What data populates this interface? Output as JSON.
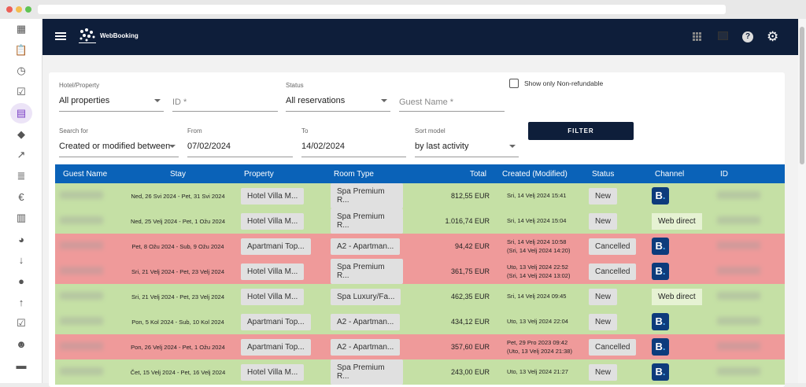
{
  "app": {
    "logo_text": "WebBooking"
  },
  "colors": {
    "header": "#0e1e3a",
    "table_header": "#0a62b8",
    "row_new": "#c5e0a5",
    "row_cancelled": "#ef9a9a",
    "booking_brand": "#0d3b7c"
  },
  "sidebar": {
    "items": [
      {
        "icon": "dashboard-icon"
      },
      {
        "icon": "clipboard-icon"
      },
      {
        "icon": "clock-icon"
      },
      {
        "icon": "calendar-check-icon"
      },
      {
        "icon": "calendar-icon",
        "active": true
      },
      {
        "icon": "tag-icon"
      },
      {
        "icon": "trending-up-icon"
      },
      {
        "icon": "document-icon"
      },
      {
        "icon": "euro-icon"
      },
      {
        "icon": "book-icon"
      },
      {
        "icon": "pie-chart-icon"
      },
      {
        "icon": "arrow-down-icon"
      },
      {
        "icon": "location-icon"
      },
      {
        "icon": "arrow-up-icon"
      },
      {
        "icon": "checkbox-icon"
      },
      {
        "icon": "people-icon"
      },
      {
        "icon": "bed-icon"
      }
    ]
  },
  "filters": {
    "hotel": {
      "label": "Hotel/Property",
      "value": "All properties"
    },
    "id": {
      "placeholder": "ID *"
    },
    "status": {
      "label": "Status",
      "value": "All reservations"
    },
    "guest": {
      "placeholder": "Guest Name *"
    },
    "nonrefundable": {
      "label": "Show only Non-refundable",
      "checked": false
    },
    "search_for": {
      "label": "Search for",
      "value": "Created or modified between"
    },
    "from": {
      "label": "From",
      "value": "07/02/2024"
    },
    "to": {
      "label": "To",
      "value": "14/02/2024"
    },
    "sort": {
      "label": "Sort model",
      "value": "by last activity"
    },
    "filter_button": "FILTER"
  },
  "table": {
    "columns": [
      "Guest Name",
      "Stay",
      "Property",
      "Room Type",
      "Total",
      "Created (Modified)",
      "Status",
      "Channel",
      "ID"
    ],
    "rows": [
      {
        "stay": "Ned, 26 Svi 2024 - Pet, 31 Svi 2024",
        "property": "Hotel Villa M...",
        "room": "Spa Premium R...",
        "total": "812,55 EUR",
        "created": "Sri, 14 Velj 2024 15:41",
        "modified": "",
        "status": "New",
        "channel": "booking"
      },
      {
        "stay": "Ned, 25 Velj 2024 - Pet, 1 Ožu 2024",
        "property": "Hotel Villa M...",
        "room": "Spa Premium R...",
        "total": "1.016,74 EUR",
        "created": "Sri, 14 Velj 2024 15:04",
        "modified": "",
        "status": "New",
        "channel": "Web direct"
      },
      {
        "stay": "Pet, 8 Ožu 2024 - Sub, 9 Ožu 2024",
        "property": "Apartmani Top...",
        "room": "A2 - Apartman...",
        "total": "94,42 EUR",
        "created": "Sri, 14 Velj 2024 10:58",
        "modified": "(Sri, 14 Velj 2024 14:20)",
        "status": "Cancelled",
        "channel": "booking"
      },
      {
        "stay": "Sri, 21 Velj 2024 - Pet, 23 Velj 2024",
        "property": "Hotel Villa M...",
        "room": "Spa Premium R...",
        "total": "361,75 EUR",
        "created": "Uto, 13 Velj 2024 22:52",
        "modified": "(Sri, 14 Velj 2024 13:02)",
        "status": "Cancelled",
        "channel": "booking"
      },
      {
        "stay": "Sri, 21 Velj 2024 - Pet, 23 Velj 2024",
        "property": "Hotel Villa M...",
        "room": "Spa Luxury/Fa...",
        "total": "462,35 EUR",
        "created": "Sri, 14 Velj 2024 09:45",
        "modified": "",
        "status": "New",
        "channel": "Web direct"
      },
      {
        "stay": "Pon, 5 Kol 2024 - Sub, 10 Kol 2024",
        "property": "Apartmani Top...",
        "room": "A2 - Apartman...",
        "total": "434,12 EUR",
        "created": "Uto, 13 Velj 2024 22:04",
        "modified": "",
        "status": "New",
        "channel": "booking"
      },
      {
        "stay": "Pon, 26 Velj 2024 - Pet, 1 Ožu 2024",
        "property": "Apartmani Top...",
        "room": "A2 - Apartman...",
        "total": "357,60 EUR",
        "created": "Pet, 29 Pro 2023 09:42",
        "modified": "(Uto, 13 Velj 2024 21:38)",
        "status": "Cancelled",
        "channel": "booking"
      },
      {
        "stay": "Čet, 15 Velj 2024 - Pet, 16 Velj 2024",
        "property": "Hotel Villa M...",
        "room": "Spa Premium R...",
        "total": "243,00 EUR",
        "created": "Uto, 13 Velj 2024 21:27",
        "modified": "",
        "status": "New",
        "channel": "booking"
      }
    ]
  }
}
